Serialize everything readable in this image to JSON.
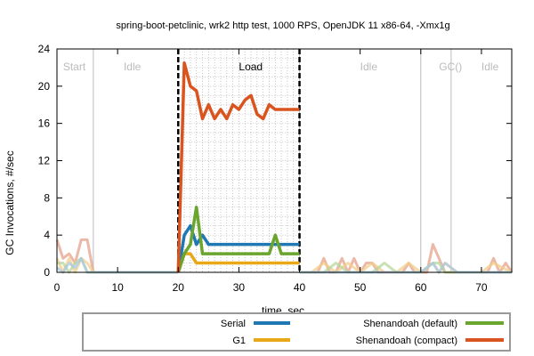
{
  "chart_data": {
    "type": "line",
    "title": "spring-boot-petclinic, wrk2 http test, 1000 RPS, OpenJDK 11 x86-64, -Xmx1g",
    "xlabel": "time, sec",
    "ylabel": "GC Invocations, #/sec",
    "xlim": [
      0,
      75
    ],
    "ylim": [
      0,
      24
    ],
    "xticks": [
      0,
      10,
      20,
      30,
      40,
      50,
      60,
      70
    ],
    "yticks": [
      0,
      4,
      8,
      12,
      16,
      20,
      24
    ],
    "grid": "minor dotted grid inside load window",
    "legend_position": "bottom",
    "phases": [
      {
        "label": "Start",
        "x": 1,
        "boundary": 0,
        "color": "#bbbbbb"
      },
      {
        "label": "Idle",
        "x": 11,
        "boundary": 6,
        "color": "#bbbbbb"
      },
      {
        "label": "Load",
        "x": 30,
        "boundary": 20,
        "color": "#000000"
      },
      {
        "label": "Idle",
        "x": 50,
        "boundary": 40,
        "color": "#bbbbbb"
      },
      {
        "label": "GC()",
        "x": 63,
        "boundary": 60,
        "color": "#bbbbbb"
      },
      {
        "label": "Idle",
        "x": 70,
        "boundary": 65,
        "color": "#bbbbbb"
      }
    ],
    "load_window": [
      20,
      40
    ],
    "series": [
      {
        "name": "Serial",
        "color": "#1f77b4",
        "x": [
          20,
          21,
          22,
          23,
          24,
          25,
          26,
          27,
          28,
          29,
          30,
          31,
          32,
          33,
          34,
          35,
          36,
          37,
          38,
          39,
          40
        ],
        "y": [
          0,
          4,
          5,
          3,
          4,
          3,
          3,
          3,
          3,
          3,
          3,
          3,
          3,
          3,
          3,
          3,
          3,
          3,
          3,
          3,
          3
        ]
      },
      {
        "name": "G1",
        "color": "#e8a818",
        "x": [
          20,
          21,
          22,
          23,
          24,
          25,
          26,
          27,
          28,
          29,
          30,
          31,
          32,
          33,
          34,
          35,
          36,
          37,
          38,
          39,
          40
        ],
        "y": [
          0,
          2,
          2,
          1,
          1,
          1,
          1,
          1,
          1,
          1,
          1,
          1,
          1,
          1,
          1,
          1,
          1,
          1,
          1,
          1,
          1
        ]
      },
      {
        "name": "Shenandoah (default)",
        "color": "#6aa52e",
        "x": [
          20,
          21,
          22,
          23,
          24,
          25,
          26,
          27,
          28,
          29,
          30,
          31,
          32,
          33,
          34,
          35,
          36,
          37,
          38,
          39,
          40
        ],
        "y": [
          0,
          2,
          3,
          7,
          2,
          2,
          2,
          2,
          2,
          2,
          2,
          2,
          2,
          2,
          2,
          2,
          4,
          2,
          2,
          2,
          2
        ]
      },
      {
        "name": "Shenandoah (compact)",
        "color": "#d9541e",
        "x": [
          20,
          21,
          22,
          23,
          24,
          25,
          26,
          27,
          28,
          29,
          30,
          31,
          32,
          33,
          34,
          35,
          36,
          37,
          38,
          39,
          40
        ],
        "y": [
          0,
          22.5,
          20,
          19.5,
          16.5,
          18,
          16.5,
          17.5,
          16.5,
          18,
          17.5,
          18.5,
          19,
          17,
          16.5,
          18,
          17.5,
          17.5,
          17.5,
          17.5,
          17.5
        ]
      }
    ],
    "faded_series": [
      {
        "color": "#e6a08a",
        "x": [
          0,
          1,
          2,
          3,
          4,
          5,
          6,
          7,
          8,
          9,
          10,
          11,
          12,
          13,
          14,
          15,
          16,
          17,
          18,
          19,
          20
        ],
        "y": [
          3.5,
          1.5,
          2,
          1,
          3.5,
          3.5,
          0,
          0,
          0,
          0,
          0,
          0,
          0,
          0,
          0,
          0,
          0,
          0,
          0,
          0,
          0
        ]
      },
      {
        "color": "#f1cf8a",
        "x": [
          0,
          1,
          2,
          3,
          4,
          5,
          6,
          7,
          8,
          9,
          10,
          11,
          12,
          13,
          14,
          15,
          16,
          17,
          18,
          19,
          20
        ],
        "y": [
          1.5,
          0,
          1.5,
          0,
          1.5,
          1,
          0,
          0,
          0,
          0,
          0,
          0,
          0,
          0,
          0,
          0,
          0,
          0,
          0,
          0,
          0
        ]
      },
      {
        "color": "#b7d79b",
        "x": [
          0,
          1,
          2,
          3,
          4,
          5,
          6,
          7,
          8,
          9,
          10,
          11,
          12,
          13,
          14,
          15,
          16,
          17,
          18,
          19,
          20
        ],
        "y": [
          1,
          1,
          0,
          1,
          1.5,
          0,
          0,
          0,
          0,
          0,
          0,
          0,
          0,
          0,
          0,
          0,
          0,
          0,
          0,
          0,
          0
        ]
      },
      {
        "color": "#a9c8e4",
        "x": [
          0,
          1,
          2,
          3,
          4,
          5,
          6,
          7,
          8,
          9,
          10,
          11,
          12,
          13,
          14,
          15,
          16,
          17,
          18,
          19,
          20
        ],
        "y": [
          0.5,
          0,
          1,
          0.5,
          1.5,
          0,
          0,
          0,
          0,
          0,
          0,
          0,
          0,
          0,
          0,
          0,
          0,
          0,
          0,
          0,
          0
        ]
      },
      {
        "color": "#e6a08a",
        "x": [
          40,
          41,
          42,
          43,
          44,
          45,
          46,
          47,
          48,
          49,
          50,
          51,
          52,
          53,
          54,
          55,
          56,
          57,
          58,
          59,
          60,
          61,
          62,
          63,
          64,
          65,
          66,
          67,
          68,
          69,
          70,
          71,
          72,
          73,
          74,
          75
        ],
        "y": [
          0,
          0,
          0,
          0,
          1.5,
          0,
          0,
          1.5,
          0,
          1.5,
          0,
          1,
          1,
          0,
          0,
          0,
          0,
          0,
          1,
          0,
          0,
          0,
          3,
          1.5,
          0,
          0,
          0,
          0,
          0,
          0,
          0,
          0,
          1.5,
          0,
          1,
          0
        ]
      },
      {
        "color": "#f1cf8a",
        "x": [
          40,
          42,
          44,
          46,
          48,
          50,
          52,
          54,
          56,
          58,
          60,
          62,
          63,
          64,
          66,
          70,
          72,
          75
        ],
        "y": [
          0,
          0,
          1,
          0,
          1,
          0,
          1,
          0,
          0,
          1,
          0,
          1,
          0,
          1,
          0,
          0,
          1,
          0
        ]
      },
      {
        "color": "#b7d79b",
        "x": [
          40,
          42,
          44,
          46,
          48,
          50,
          52,
          54,
          56,
          58,
          60,
          62,
          63,
          64,
          66,
          70,
          72,
          75
        ],
        "y": [
          0,
          0,
          0,
          1,
          0,
          0,
          0,
          1,
          0,
          0,
          0,
          1,
          1,
          0,
          0,
          0,
          0,
          0
        ]
      },
      {
        "color": "#a9c8e4",
        "x": [
          40,
          42,
          44,
          46,
          48,
          50,
          52,
          54,
          56,
          58,
          60,
          62,
          63,
          64,
          66,
          70,
          72,
          75
        ],
        "y": [
          0,
          0,
          0,
          0,
          0,
          0,
          0,
          0,
          0,
          0,
          0,
          1,
          0,
          1,
          0,
          0,
          0,
          0
        ]
      }
    ]
  }
}
